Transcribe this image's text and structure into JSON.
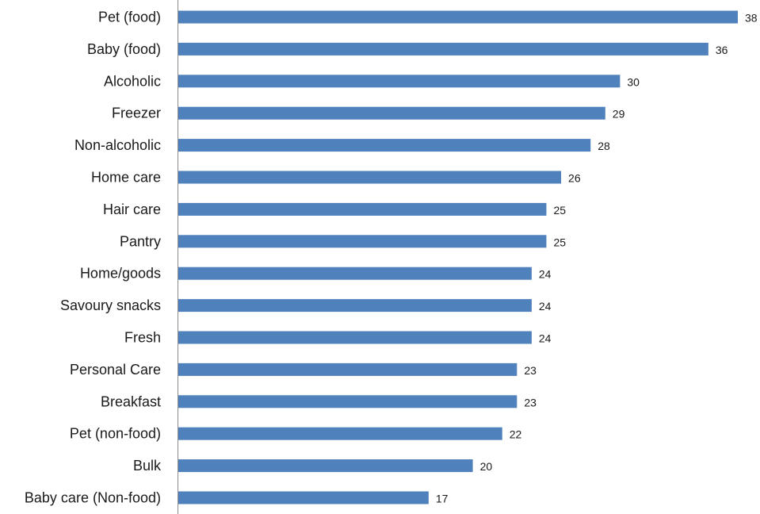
{
  "chart_data": {
    "type": "bar",
    "orientation": "horizontal",
    "categories": [
      "Pet (food)",
      "Baby (food)",
      "Alcoholic",
      "Freezer",
      "Non-alcoholic",
      "Home care",
      "Hair care",
      "Pantry",
      "Home/goods",
      "Savoury snacks",
      "Fresh",
      "Personal Care",
      "Breakfast",
      "Pet (non-food)",
      "Bulk",
      "Baby care (Non-food)"
    ],
    "values": [
      38,
      36,
      30,
      29,
      28,
      26,
      25,
      25,
      24,
      24,
      24,
      23,
      23,
      22,
      20,
      17
    ],
    "data_labels": [
      "38",
      "36",
      "30",
      "29",
      "28",
      "26",
      "25",
      "25",
      "24",
      "24",
      "24",
      "23",
      "23",
      "22",
      "20",
      "17"
    ],
    "xlim": [
      0,
      38
    ],
    "grid": false,
    "legend": "none",
    "bar_color": "#4f81bd",
    "axis_color": "#8c8c8c"
  }
}
